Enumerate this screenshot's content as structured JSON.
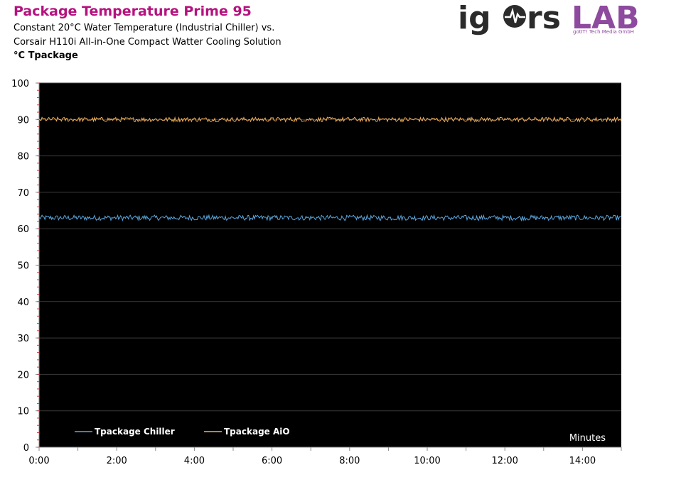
{
  "header": {
    "title": "Package Temperature Prime 95",
    "subtitle_line1": "Constant 20°C Water Temperature (Industrial Chiller) vs.",
    "subtitle_line2": "Corsair H110i All-in-One Compact Watter Cooling Solution",
    "unit_label": "°C Tpackage"
  },
  "logo": {
    "text_left": "ig",
    "text_mid": "rs",
    "text_right": "LAB",
    "tagline": "gotIT! Tech Media GmbH",
    "color_dark": "#2b2b2b",
    "color_accent": "#8e4a9e"
  },
  "chart_data": {
    "type": "line",
    "ylabel": "°C Tpackage",
    "xlabel": "Minutes",
    "ylim": [
      0,
      100
    ],
    "yticks": [
      0,
      10,
      20,
      30,
      40,
      50,
      60,
      70,
      80,
      90,
      100
    ],
    "xlim_minutes": [
      0,
      15
    ],
    "xticks": [
      "0:00",
      "2:00",
      "4:00",
      "6:00",
      "8:00",
      "10:00",
      "12:00",
      "14:00"
    ],
    "background": "#000000",
    "grid": true,
    "legend_position": "bottom-left",
    "series": [
      {
        "name": "Tpackage Chiller",
        "color": "#5aa8e0",
        "mean": 63.0,
        "jitter": 0.7
      },
      {
        "name": "Tpackage AiO",
        "color": "#f0b060",
        "mean": 90.0,
        "jitter": 0.6
      }
    ]
  }
}
